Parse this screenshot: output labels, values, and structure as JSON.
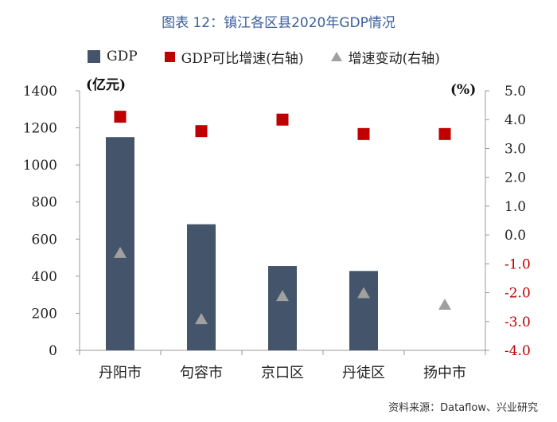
{
  "title": "图表 12：镇江各区县2020年GDP情况",
  "source": "资料来源：Dataflow、兴业研究",
  "legend": {
    "gdp": "GDP",
    "growth": "GDP可比增速(右轴)",
    "change": "增速变动(右轴)"
  },
  "colors": {
    "bar": "#44546a",
    "growth": "#c00000",
    "change": "#a0a0a0",
    "negative_tick": "#c00000"
  },
  "chart_data": {
    "type": "bar",
    "title": "图表 12：镇江各区县2020年GDP情况",
    "categories": [
      "丹阳市",
      "句容市",
      "京口区",
      "丹徒区",
      "扬中市"
    ],
    "y_left": {
      "unit": "(亿元)",
      "ylim": [
        0,
        1400
      ],
      "ticks": [
        "0",
        "200",
        "400",
        "600",
        "800",
        "1000",
        "1200",
        "1400"
      ]
    },
    "y_right": {
      "unit": "(%)",
      "ylim": [
        -4.0,
        5.0
      ],
      "ticks": [
        "-4.0",
        "-3.0",
        "-2.0",
        "-1.0",
        "0.0",
        "1.0",
        "2.0",
        "3.0",
        "4.0",
        "5.0"
      ]
    },
    "series": [
      {
        "name": "GDP",
        "type": "bar",
        "axis": "left",
        "values": [
          1150,
          680,
          455,
          428,
          null
        ]
      },
      {
        "name": "GDP可比增速(右轴)",
        "type": "scatter",
        "marker": "square",
        "axis": "right",
        "values": [
          4.1,
          3.6,
          4.0,
          3.5,
          3.5
        ]
      },
      {
        "name": "增速变动(右轴)",
        "type": "scatter",
        "marker": "triangle",
        "axis": "right",
        "values": [
          -0.6,
          -2.9,
          -2.1,
          -2.0,
          -2.4
        ]
      }
    ],
    "grid": false,
    "legend_position": "top"
  }
}
